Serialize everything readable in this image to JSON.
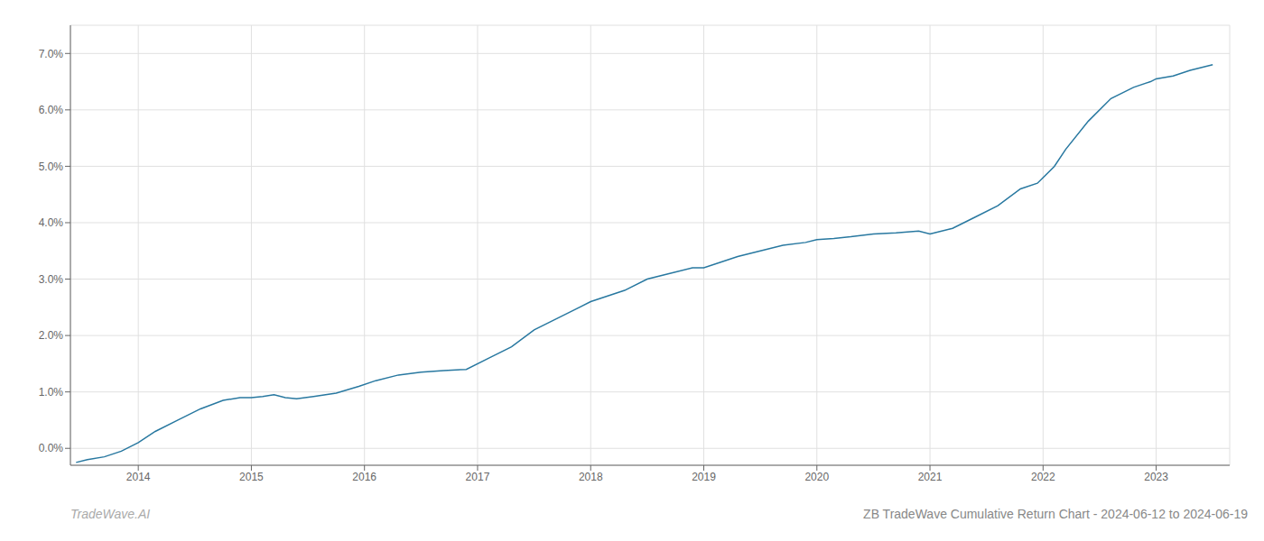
{
  "chart_data": {
    "type": "line",
    "title": "ZB TradeWave Cumulative Return Chart - 2024-06-12 to 2024-06-19",
    "annotations": [
      {
        "text": "TradeWave.AI"
      }
    ],
    "x": [
      2013.45,
      2013.55,
      2013.7,
      2013.85,
      2014.0,
      2014.15,
      2014.35,
      2014.55,
      2014.75,
      2014.9,
      2015.0,
      2015.1,
      2015.2,
      2015.3,
      2015.4,
      2015.55,
      2015.75,
      2015.95,
      2016.1,
      2016.3,
      2016.5,
      2016.7,
      2016.9,
      2017.1,
      2017.3,
      2017.5,
      2017.7,
      2017.9,
      2018.0,
      2018.15,
      2018.3,
      2018.5,
      2018.7,
      2018.9,
      2019.0,
      2019.15,
      2019.3,
      2019.5,
      2019.7,
      2019.9,
      2020.0,
      2020.15,
      2020.3,
      2020.5,
      2020.7,
      2020.9,
      2021.0,
      2021.2,
      2021.4,
      2021.6,
      2021.8,
      2021.95,
      2022.0,
      2022.1,
      2022.2,
      2022.4,
      2022.6,
      2022.8,
      2022.95,
      2023.0,
      2023.15,
      2023.3,
      2023.5
    ],
    "values": [
      -0.0025,
      -0.002,
      -0.0015,
      -0.0005,
      0.001,
      0.003,
      0.005,
      0.007,
      0.0085,
      0.009,
      0.009,
      0.0092,
      0.0095,
      0.009,
      0.0088,
      0.0092,
      0.0098,
      0.011,
      0.012,
      0.013,
      0.0135,
      0.0138,
      0.014,
      0.016,
      0.018,
      0.021,
      0.023,
      0.025,
      0.026,
      0.027,
      0.028,
      0.03,
      0.031,
      0.032,
      0.032,
      0.033,
      0.034,
      0.035,
      0.036,
      0.0365,
      0.037,
      0.0372,
      0.0375,
      0.038,
      0.0382,
      0.0385,
      0.038,
      0.039,
      0.041,
      0.043,
      0.046,
      0.047,
      0.048,
      0.05,
      0.053,
      0.058,
      0.062,
      0.064,
      0.065,
      0.0655,
      0.066,
      0.067,
      0.068
    ],
    "color": "#2878a0",
    "xlim": [
      2013.4,
      2023.65
    ],
    "ylim": [
      -0.003,
      0.075
    ],
    "xticks": [
      2014,
      2015,
      2016,
      2017,
      2018,
      2019,
      2020,
      2021,
      2022,
      2023
    ],
    "yticks": [
      {
        "value": 0.0,
        "label": "0.0%"
      },
      {
        "value": 0.01,
        "label": "1.0%"
      },
      {
        "value": 0.02,
        "label": "2.0%"
      },
      {
        "value": 0.03,
        "label": "3.0%"
      },
      {
        "value": 0.04,
        "label": "4.0%"
      },
      {
        "value": 0.05,
        "label": "5.0%"
      },
      {
        "value": 0.06,
        "label": "6.0%"
      },
      {
        "value": 0.07,
        "label": "7.0%"
      }
    ],
    "grid": true
  }
}
